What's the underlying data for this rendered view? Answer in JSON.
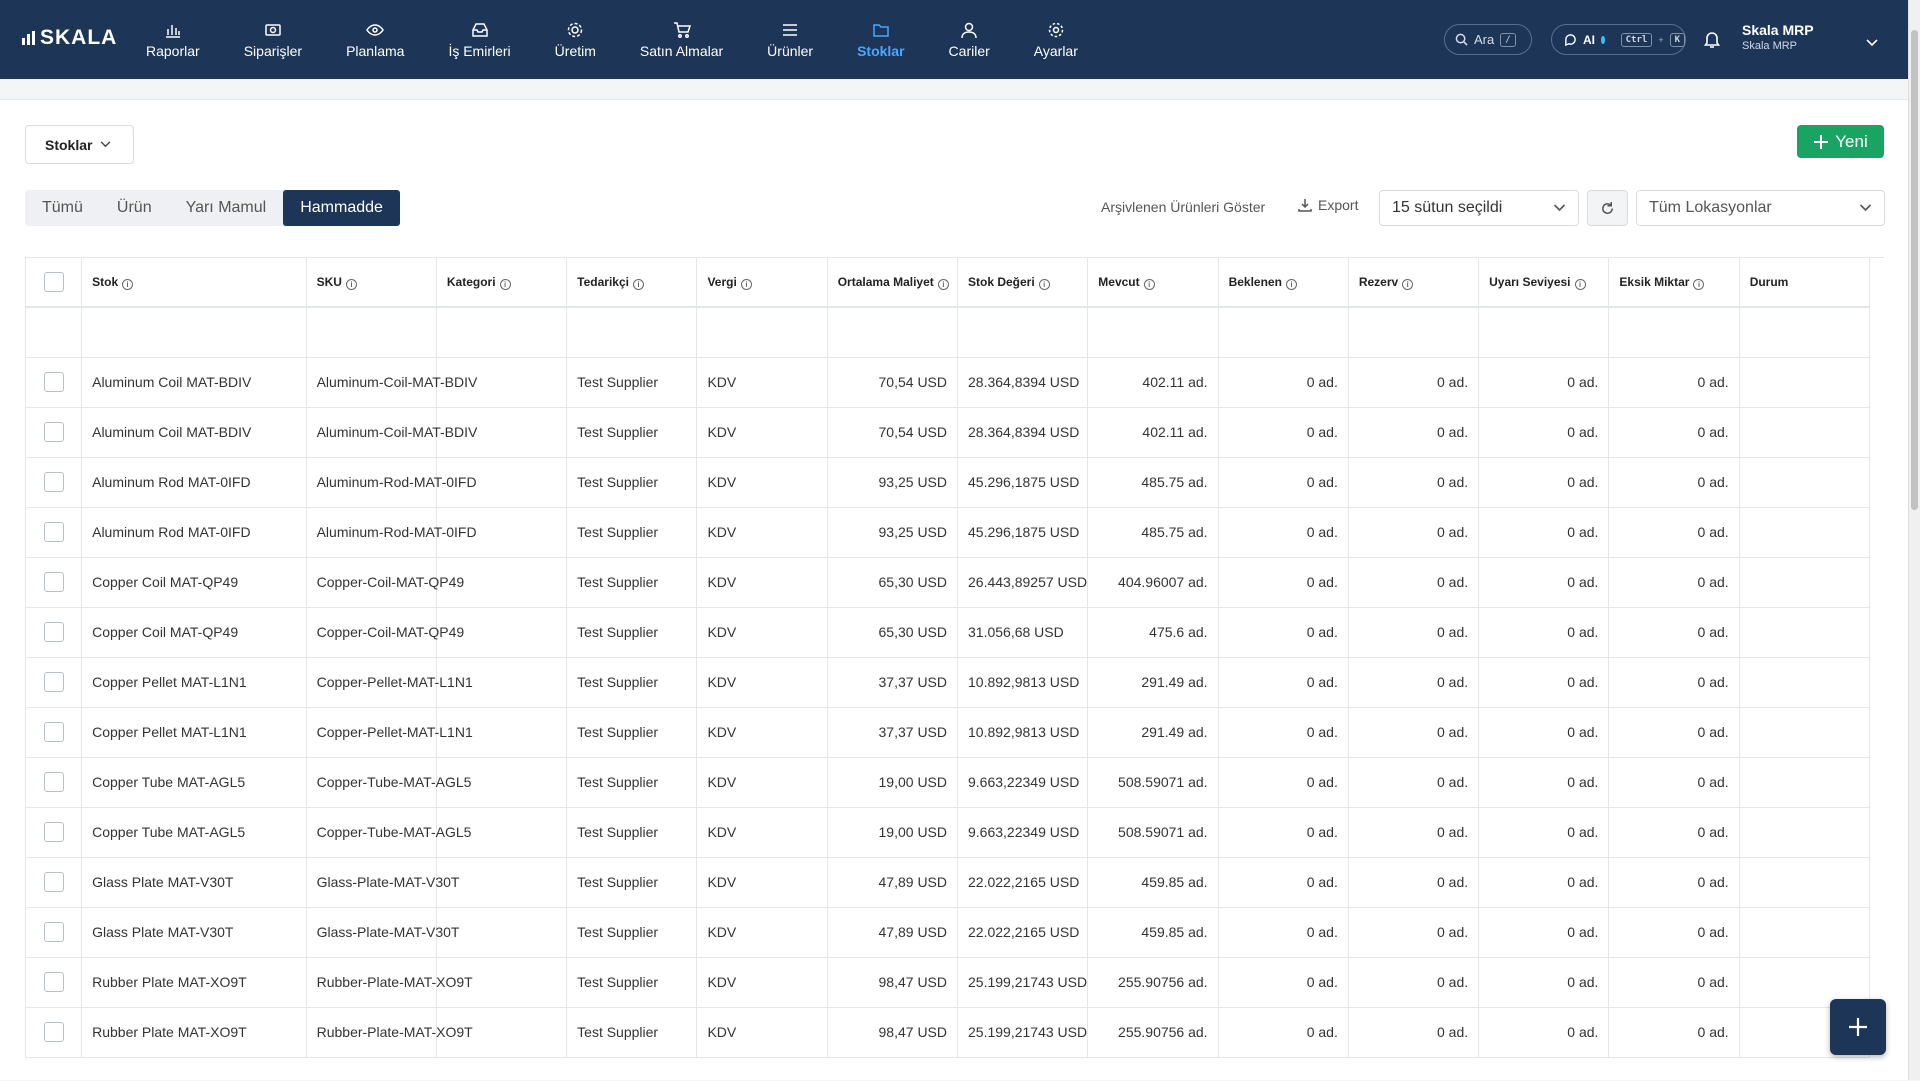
{
  "brand": {
    "name": "SKALA"
  },
  "nav": [
    {
      "label": "Raporlar",
      "icon": "chart-icon"
    },
    {
      "label": "Siparişler",
      "icon": "orders-icon"
    },
    {
      "label": "Planlama",
      "icon": "eye-icon"
    },
    {
      "label": "İş Emirleri",
      "icon": "inbox-icon"
    },
    {
      "label": "Üretim",
      "icon": "gear-icon"
    },
    {
      "label": "Satın Almalar",
      "icon": "cart-icon"
    },
    {
      "label": "Ürünler",
      "icon": "menu-icon"
    },
    {
      "label": "Stoklar",
      "icon": "folder-icon",
      "active": true
    },
    {
      "label": "Cariler",
      "icon": "user-icon"
    },
    {
      "label": "Ayarlar",
      "icon": "settings-icon"
    }
  ],
  "header": {
    "search_label": "Ara",
    "search_shortcut": "/",
    "ai_label": "AI",
    "ai_shortcut_1": "Ctrl",
    "ai_shortcut_sep": "+",
    "ai_shortcut_2": "K",
    "user_name": "Skala MRP",
    "user_org": "Skala MRP"
  },
  "toolbar": {
    "stock_select": "Stoklar",
    "new_button": "Yeni",
    "tabs": [
      "Tümü",
      "Ürün",
      "Yarı Mamul",
      "Hammadde"
    ],
    "active_tab": "Hammadde",
    "archived_link": "Arşivlenen Ürünleri Göster",
    "export_label": "Export",
    "columns_select": "15 sütun seçildi",
    "location_select": "Tüm Lokasyonlar"
  },
  "table": {
    "columns": [
      "Stok",
      "SKU",
      "Kategori",
      "Tedarikçi",
      "Vergi",
      "Ortalama Maliyet",
      "Stok Değeri",
      "Mevcut",
      "Beklenen",
      "Rezerv",
      "Uyarı Seviyesi",
      "Eksik Miktar",
      "Durum"
    ],
    "rows": [
      {
        "stok": "Aluminum Coil MAT-BDIV",
        "sku": "Aluminum-Coil-MAT-BDIV",
        "kategori": "",
        "tedarikci": "Test Supplier",
        "vergi": "KDV",
        "maliyet": "70,54 USD",
        "deger": "28.364,8394 USD",
        "mevcut": "402.11 ad.",
        "beklenen": "0 ad.",
        "rezerv": "0 ad.",
        "uyari": "0 ad.",
        "eksik": "0 ad.",
        "durum": ""
      },
      {
        "stok": "Aluminum Coil MAT-BDIV",
        "sku": "Aluminum-Coil-MAT-BDIV",
        "kategori": "",
        "tedarikci": "Test Supplier",
        "vergi": "KDV",
        "maliyet": "70,54 USD",
        "deger": "28.364,8394 USD",
        "mevcut": "402.11 ad.",
        "beklenen": "0 ad.",
        "rezerv": "0 ad.",
        "uyari": "0 ad.",
        "eksik": "0 ad.",
        "durum": ""
      },
      {
        "stok": "Aluminum Rod MAT-0IFD",
        "sku": "Aluminum-Rod-MAT-0IFD",
        "kategori": "",
        "tedarikci": "Test Supplier",
        "vergi": "KDV",
        "maliyet": "93,25 USD",
        "deger": "45.296,1875 USD",
        "mevcut": "485.75 ad.",
        "beklenen": "0 ad.",
        "rezerv": "0 ad.",
        "uyari": "0 ad.",
        "eksik": "0 ad.",
        "durum": ""
      },
      {
        "stok": "Aluminum Rod MAT-0IFD",
        "sku": "Aluminum-Rod-MAT-0IFD",
        "kategori": "",
        "tedarikci": "Test Supplier",
        "vergi": "KDV",
        "maliyet": "93,25 USD",
        "deger": "45.296,1875 USD",
        "mevcut": "485.75 ad.",
        "beklenen": "0 ad.",
        "rezerv": "0 ad.",
        "uyari": "0 ad.",
        "eksik": "0 ad.",
        "durum": ""
      },
      {
        "stok": "Copper Coil MAT-QP49",
        "sku": "Copper-Coil-MAT-QP49",
        "kategori": "",
        "tedarikci": "Test Supplier",
        "vergi": "KDV",
        "maliyet": "65,30 USD",
        "deger": "26.443,89257 USD",
        "mevcut": "404.96007 ad.",
        "beklenen": "0 ad.",
        "rezerv": "0 ad.",
        "uyari": "0 ad.",
        "eksik": "0 ad.",
        "durum": ""
      },
      {
        "stok": "Copper Coil MAT-QP49",
        "sku": "Copper-Coil-MAT-QP49",
        "kategori": "",
        "tedarikci": "Test Supplier",
        "vergi": "KDV",
        "maliyet": "65,30 USD",
        "deger": "31.056,68 USD",
        "mevcut": "475.6 ad.",
        "beklenen": "0 ad.",
        "rezerv": "0 ad.",
        "uyari": "0 ad.",
        "eksik": "0 ad.",
        "durum": ""
      },
      {
        "stok": "Copper Pellet MAT-L1N1",
        "sku": "Copper-Pellet-MAT-L1N1",
        "kategori": "",
        "tedarikci": "Test Supplier",
        "vergi": "KDV",
        "maliyet": "37,37 USD",
        "deger": "10.892,9813 USD",
        "mevcut": "291.49 ad.",
        "beklenen": "0 ad.",
        "rezerv": "0 ad.",
        "uyari": "0 ad.",
        "eksik": "0 ad.",
        "durum": ""
      },
      {
        "stok": "Copper Pellet MAT-L1N1",
        "sku": "Copper-Pellet-MAT-L1N1",
        "kategori": "",
        "tedarikci": "Test Supplier",
        "vergi": "KDV",
        "maliyet": "37,37 USD",
        "deger": "10.892,9813 USD",
        "mevcut": "291.49 ad.",
        "beklenen": "0 ad.",
        "rezerv": "0 ad.",
        "uyari": "0 ad.",
        "eksik": "0 ad.",
        "durum": ""
      },
      {
        "stok": "Copper Tube MAT-AGL5",
        "sku": "Copper-Tube-MAT-AGL5",
        "kategori": "",
        "tedarikci": "Test Supplier",
        "vergi": "KDV",
        "maliyet": "19,00 USD",
        "deger": "9.663,22349 USD",
        "mevcut": "508.59071 ad.",
        "beklenen": "0 ad.",
        "rezerv": "0 ad.",
        "uyari": "0 ad.",
        "eksik": "0 ad.",
        "durum": ""
      },
      {
        "stok": "Copper Tube MAT-AGL5",
        "sku": "Copper-Tube-MAT-AGL5",
        "kategori": "",
        "tedarikci": "Test Supplier",
        "vergi": "KDV",
        "maliyet": "19,00 USD",
        "deger": "9.663,22349 USD",
        "mevcut": "508.59071 ad.",
        "beklenen": "0 ad.",
        "rezerv": "0 ad.",
        "uyari": "0 ad.",
        "eksik": "0 ad.",
        "durum": ""
      },
      {
        "stok": "Glass Plate MAT-V30T",
        "sku": "Glass-Plate-MAT-V30T",
        "kategori": "",
        "tedarikci": "Test Supplier",
        "vergi": "KDV",
        "maliyet": "47,89 USD",
        "deger": "22.022,2165 USD",
        "mevcut": "459.85 ad.",
        "beklenen": "0 ad.",
        "rezerv": "0 ad.",
        "uyari": "0 ad.",
        "eksik": "0 ad.",
        "durum": ""
      },
      {
        "stok": "Glass Plate MAT-V30T",
        "sku": "Glass-Plate-MAT-V30T",
        "kategori": "",
        "tedarikci": "Test Supplier",
        "vergi": "KDV",
        "maliyet": "47,89 USD",
        "deger": "22.022,2165 USD",
        "mevcut": "459.85 ad.",
        "beklenen": "0 ad.",
        "rezerv": "0 ad.",
        "uyari": "0 ad.",
        "eksik": "0 ad.",
        "durum": ""
      },
      {
        "stok": "Rubber Plate MAT-XO9T",
        "sku": "Rubber-Plate-MAT-XO9T",
        "kategori": "",
        "tedarikci": "Test Supplier",
        "vergi": "KDV",
        "maliyet": "98,47 USD",
        "deger": "25.199,21743 USD",
        "mevcut": "255.90756 ad.",
        "beklenen": "0 ad.",
        "rezerv": "0 ad.",
        "uyari": "0 ad.",
        "eksik": "0 ad.",
        "durum": ""
      },
      {
        "stok": "Rubber Plate MAT-XO9T",
        "sku": "Rubber-Plate-MAT-XO9T",
        "kategori": "",
        "tedarikci": "Test Supplier",
        "vergi": "KDV",
        "maliyet": "98,47 USD",
        "deger": "25.199,21743 USD",
        "mevcut": "255.90756 ad.",
        "beklenen": "0 ad.",
        "rezerv": "0 ad.",
        "uyari": "0 ad.",
        "eksik": "0 ad.",
        "durum": ""
      }
    ]
  },
  "colors": {
    "nav_bg": "#1d3557",
    "nav_active": "#4aa8ff",
    "link": "#1f78c1",
    "new_button": "#1aa463"
  }
}
